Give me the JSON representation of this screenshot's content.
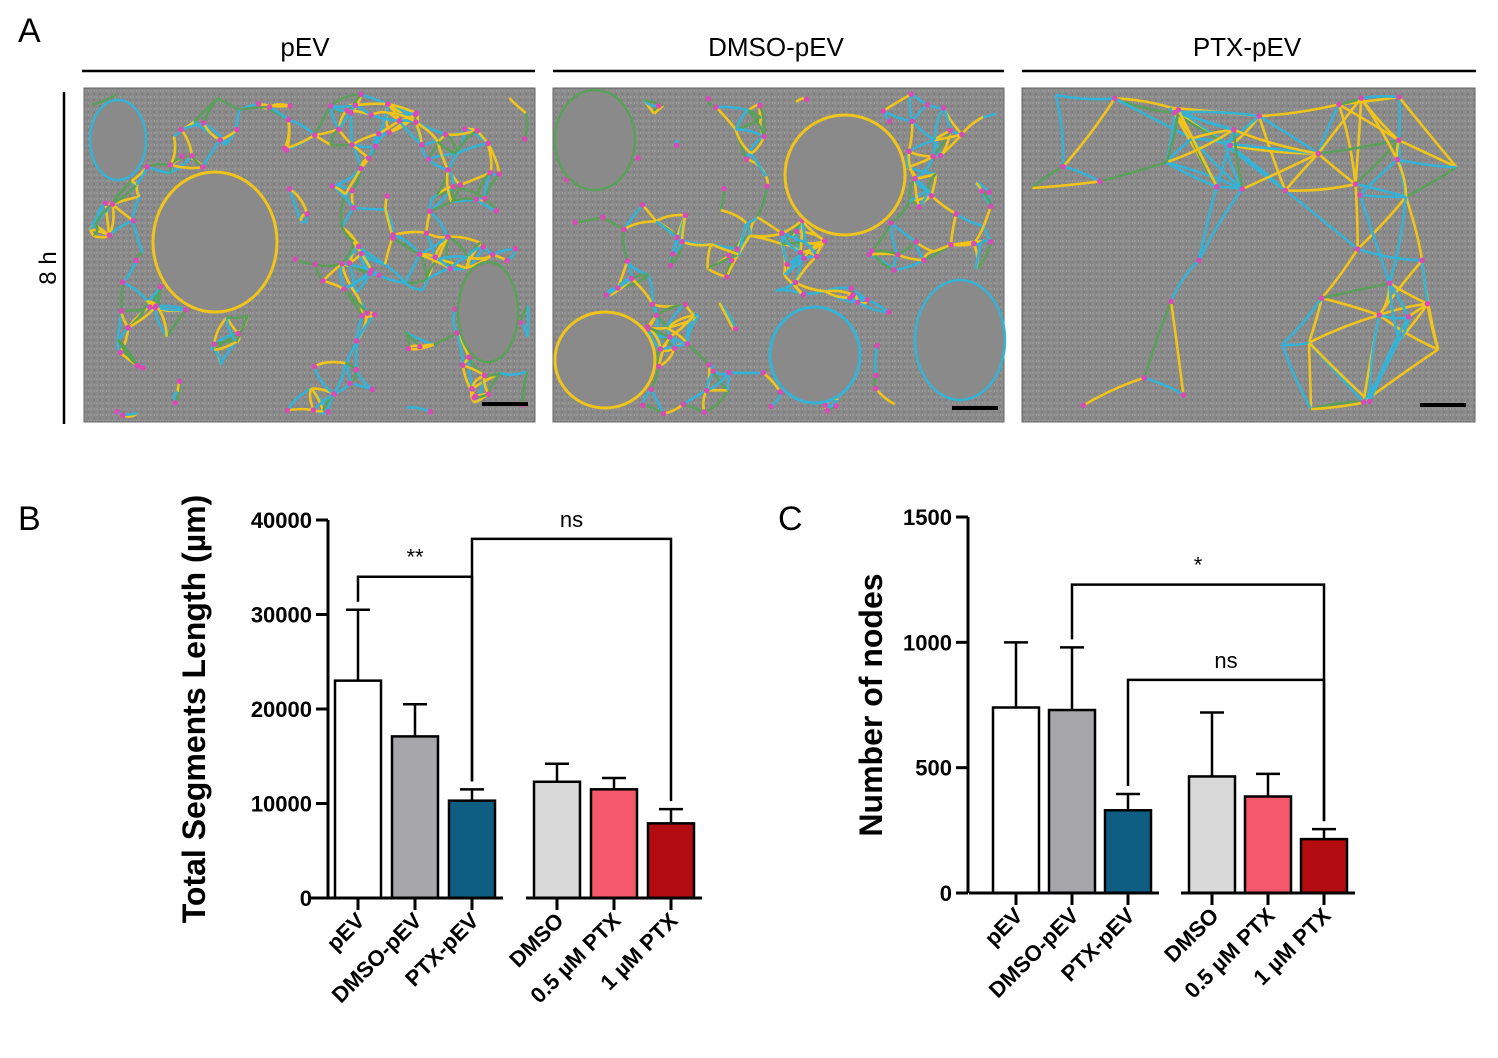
{
  "panel_a": {
    "letter": "A",
    "time_label": "8 h",
    "conditions": [
      "pEV",
      "DMSO-pEV",
      "PTX-pEV"
    ]
  },
  "colors": {
    "pEV": "#ffffff",
    "DMSO-pEV": "#a6a6ab",
    "PTX-pEV": "#0e5e84",
    "DMSO": "#d9d9d9",
    "0.5 µM PTX": "#f5586a",
    "1 µM PTX": "#b30d12",
    "micrograph_bg": "#8c8c8c",
    "network_yellow": "#f0c419",
    "network_cyan": "#35b3d6",
    "network_green": "#5aa05a",
    "node_magenta": "#d94bb5"
  },
  "chart_data": [
    {
      "panel": "B",
      "type": "bar",
      "title": "",
      "xlabel": "",
      "ylabel": "Total Segments Length (µm)",
      "ylim": [
        0,
        40000
      ],
      "yticks": [
        0,
        10000,
        20000,
        30000,
        40000
      ],
      "categories": [
        "pEV",
        "DMSO-pEV",
        "PTX-pEV",
        "DMSO",
        "0.5 µM PTX",
        "1 µM PTX"
      ],
      "values": [
        23000,
        17100,
        10300,
        12300,
        11500,
        7900
      ],
      "errors": [
        7500,
        3400,
        1200,
        1900,
        1200,
        1500
      ],
      "significance": [
        {
          "from": 0,
          "to": 2,
          "label": "**",
          "y": 34000
        },
        {
          "from": 2,
          "to": 5,
          "label": "ns",
          "y": 38000
        }
      ]
    },
    {
      "panel": "C",
      "type": "bar",
      "title": "",
      "xlabel": "",
      "ylabel": "Number of nodes",
      "ylim": [
        0,
        1500
      ],
      "yticks": [
        0,
        500,
        1000,
        1500
      ],
      "categories": [
        "pEV",
        "DMSO-pEV",
        "PTX-pEV",
        "DMSO",
        "0.5 µM PTX",
        "1 µM PTX"
      ],
      "values": [
        740,
        730,
        330,
        465,
        385,
        215
      ],
      "errors": [
        260,
        250,
        65,
        255,
        90,
        40
      ],
      "significance": [
        {
          "from": 1,
          "to": 5,
          "label": "*",
          "y": 1230
        },
        {
          "from": 2,
          "to": 5,
          "label": "ns",
          "y": 850
        }
      ]
    }
  ]
}
